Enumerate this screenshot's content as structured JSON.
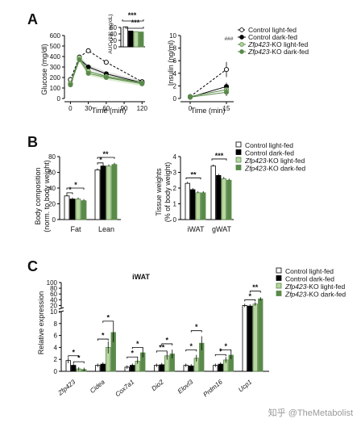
{
  "colors": {
    "control_light": "#ffffff",
    "control_dark": "#000000",
    "ko_light": "#b8d6a0",
    "ko_dark": "#5a8a4a",
    "shade_control": "#d9d9d9",
    "shade_ko": "#cfe5bf"
  },
  "panels": {
    "a": "A",
    "b": "B",
    "c": "C"
  },
  "chart_data": [
    {
      "id": "glucose",
      "type": "line",
      "xlabel": "Time (min)",
      "ylabel": "Glucose (mg/dl)",
      "x": [
        0,
        15,
        30,
        60,
        120
      ],
      "x_ticks": [
        "0",
        "30",
        "60",
        "90",
        "120"
      ],
      "y_ticks": [
        "0",
        "100",
        "200",
        "300",
        "400",
        "500",
        "600"
      ],
      "ylim": [
        0,
        600
      ],
      "series": [
        {
          "name": "Control light-fed",
          "values": [
            180,
            395,
            455,
            345,
            160
          ]
        },
        {
          "name": "Control dark-fed",
          "values": [
            140,
            380,
            300,
            235,
            150
          ]
        },
        {
          "name": "Zfp423-KO light-fed",
          "values": [
            145,
            390,
            260,
            210,
            150
          ]
        },
        {
          "name": "Zfp423-KO dark-fed",
          "values": [
            130,
            370,
            240,
            200,
            140
          ]
        }
      ],
      "inset": {
        "ylabel": "AUC (10³ mg/dL)",
        "y_ticks": [
          "0",
          "20",
          "40",
          "60"
        ],
        "values": [
          62,
          49,
          47,
          46
        ],
        "sig": [
          "***",
          "***"
        ]
      }
    },
    {
      "id": "insulin",
      "type": "line",
      "xlabel": "Time (min)",
      "ylabel": "Insulin (ng/ml)",
      "x": [
        0,
        15
      ],
      "x_ticks": [
        "0",
        "15"
      ],
      "y_ticks": [
        "0",
        "2",
        "4",
        "6",
        "8",
        "10"
      ],
      "ylim": [
        0,
        10
      ],
      "series": [
        {
          "name": "Control light-fed",
          "values": [
            0.3,
            4.6
          ]
        },
        {
          "name": "Control dark-fed",
          "values": [
            0.2,
            1.9
          ]
        },
        {
          "name": "Zfp423-KO light-fed",
          "values": [
            0.3,
            1.4
          ]
        },
        {
          "name": "Zfp423-KO dark-fed",
          "values": [
            0.2,
            1.0
          ]
        }
      ],
      "sig": "###"
    },
    {
      "id": "body_composition",
      "type": "bar",
      "ylabel": "Body composition (norm. to body weight)",
      "categories": [
        "Fat",
        "Lean"
      ],
      "y_ticks": [
        "0",
        "20",
        "40",
        "60",
        "80"
      ],
      "ylim": [
        0,
        80
      ],
      "series": [
        {
          "name": "Control light-fed",
          "values": [
            30,
            63
          ]
        },
        {
          "name": "Control dark-fed",
          "values": [
            26,
            68
          ]
        },
        {
          "name": "Zfp423-KO light-fed",
          "values": [
            26,
            68
          ]
        },
        {
          "name": "Zfp423-KO dark-fed",
          "values": [
            24,
            70
          ]
        }
      ],
      "sig": [
        "*",
        "*",
        "**",
        "*"
      ]
    },
    {
      "id": "tissue_weights",
      "type": "bar",
      "ylabel": "Tissue weights (% of body weight)",
      "categories": [
        "iWAT",
        "gWAT"
      ],
      "y_ticks": [
        "0",
        "1",
        "2",
        "3",
        "4"
      ],
      "ylim": [
        0,
        4
      ],
      "series": [
        {
          "name": "Control light-fed",
          "values": [
            2.3,
            3.4
          ]
        },
        {
          "name": "Control dark-fed",
          "values": [
            1.9,
            2.8
          ]
        },
        {
          "name": "Zfp423-KO light-fed",
          "values": [
            1.7,
            2.6
          ]
        },
        {
          "name": "Zfp423-KO dark-fed",
          "values": [
            1.7,
            2.5
          ]
        }
      ],
      "sig": [
        "**",
        "***"
      ]
    },
    {
      "id": "iwat_expression",
      "type": "bar",
      "title": "iWAT",
      "ylabel": "Relative expression",
      "categories": [
        "Zfp423",
        "Cidea",
        "Cox7a1",
        "Dio2",
        "Elovl3",
        "Prdm16",
        "Ucp1"
      ],
      "y_ticks_low": [
        "0",
        "2",
        "4",
        "6",
        "8",
        "10"
      ],
      "y_ticks_high": [
        "20",
        "40",
        "60",
        "80",
        "100"
      ],
      "series": [
        {
          "name": "Control light-fed",
          "values": [
            1.8,
            1.0,
            0.7,
            1.0,
            1.0,
            1.0,
            20
          ]
        },
        {
          "name": "Control dark-fed",
          "values": [
            1.0,
            1.2,
            1.0,
            1.1,
            0.9,
            1.2,
            18
          ]
        },
        {
          "name": "Zfp423-KO light-fed",
          "values": [
            0.4,
            4.0,
            1.7,
            2.6,
            2.2,
            1.9,
            25
          ]
        },
        {
          "name": "Zfp423-KO dark-fed",
          "values": [
            0.3,
            6.5,
            3.1,
            2.9,
            4.7,
            2.7,
            43
          ]
        }
      ],
      "sig": [
        "*",
        "*",
        "*",
        "*",
        "*",
        "*",
        "**",
        "*",
        "*",
        "*",
        "*",
        "*",
        "**"
      ]
    }
  ],
  "legend_a": [
    "Control light-fed",
    "Control dark-fed",
    "Zfp423-KO light-fed",
    "Zfp423-KO dark-fed"
  ],
  "legend_b": [
    "Control light-fed",
    "Control dark-fed",
    "Zfp423-KO light-fed",
    "Zfp423-KO dark-fed"
  ],
  "legend_c": [
    "Control light-fed",
    "Control dark-fed",
    "Zfp423-KO light-fed",
    "Zfp423-KO dark-fed"
  ],
  "watermark": "知乎 @TheMetabolist"
}
